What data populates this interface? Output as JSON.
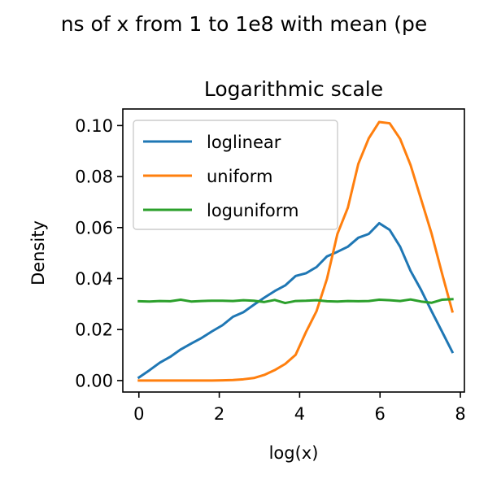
{
  "chart_data": {
    "type": "line",
    "suptitle": "ns of x from 1 to 1e8 with mean (pe",
    "title": "Logarithmic scale",
    "xlabel": "log(x)",
    "ylabel": "Density",
    "xlim": [
      -0.4,
      8.1
    ],
    "ylim": [
      -0.0045,
      0.1065
    ],
    "xticks": [
      0,
      2,
      4,
      6,
      8
    ],
    "xtick_labels": [
      "0",
      "2",
      "4",
      "6",
      "8"
    ],
    "yticks": [
      0.0,
      0.02,
      0.04,
      0.06,
      0.08,
      0.1
    ],
    "ytick_labels": [
      "0.00",
      "0.02",
      "0.04",
      "0.06",
      "0.08",
      "0.10"
    ],
    "grid": false,
    "legend_position": "top-left",
    "series": [
      {
        "name": "loglinear",
        "color": "#1f77b4",
        "x": [
          0.0,
          0.26,
          0.52,
          0.78,
          1.04,
          1.3,
          1.56,
          1.82,
          2.08,
          2.34,
          2.6,
          2.86,
          3.12,
          3.38,
          3.64,
          3.9,
          4.16,
          4.42,
          4.68,
          4.94,
          5.2,
          5.46,
          5.72,
          5.98,
          6.24,
          6.5,
          6.76,
          7.02,
          7.28,
          7.54,
          7.8
        ],
        "y": [
          0.0012,
          0.004,
          0.007,
          0.0093,
          0.0122,
          0.0145,
          0.0167,
          0.0193,
          0.0217,
          0.025,
          0.0268,
          0.0297,
          0.0325,
          0.0351,
          0.0373,
          0.041,
          0.0421,
          0.0445,
          0.0487,
          0.0505,
          0.0525,
          0.056,
          0.0575,
          0.0617,
          0.0591,
          0.0525,
          0.043,
          0.0356,
          0.0273,
          0.0193,
          0.0112
        ]
      },
      {
        "name": "uniform",
        "color": "#ff7f0e",
        "x": [
          0.0,
          0.26,
          0.52,
          0.78,
          1.04,
          1.3,
          1.56,
          1.82,
          2.08,
          2.34,
          2.6,
          2.86,
          3.12,
          3.38,
          3.64,
          3.9,
          4.16,
          4.42,
          4.68,
          4.94,
          5.2,
          5.46,
          5.72,
          5.98,
          6.24,
          6.5,
          6.76,
          7.02,
          7.28,
          7.54,
          7.8
        ],
        "y": [
          0.0,
          0.0,
          0.0,
          0.0,
          0.0,
          0.0,
          0.0,
          0.0,
          0.0001,
          0.0002,
          0.0005,
          0.001,
          0.0022,
          0.0041,
          0.0065,
          0.0101,
          0.0191,
          0.0272,
          0.0399,
          0.0575,
          0.0678,
          0.085,
          0.095,
          0.1014,
          0.1009,
          0.0948,
          0.0845,
          0.0712,
          0.0578,
          0.0422,
          0.0271
        ]
      },
      {
        "name": "loguniform",
        "color": "#2ca02c",
        "x": [
          0.0,
          0.26,
          0.52,
          0.78,
          1.04,
          1.3,
          1.56,
          1.82,
          2.08,
          2.34,
          2.6,
          2.86,
          3.12,
          3.38,
          3.64,
          3.9,
          4.16,
          4.42,
          4.68,
          4.94,
          5.2,
          5.46,
          5.72,
          5.98,
          6.24,
          6.5,
          6.76,
          7.02,
          7.28,
          7.54,
          7.8
        ],
        "y": [
          0.0311,
          0.031,
          0.0312,
          0.0311,
          0.0317,
          0.031,
          0.0312,
          0.0313,
          0.0313,
          0.0312,
          0.0315,
          0.0313,
          0.0308,
          0.0316,
          0.0304,
          0.0312,
          0.0313,
          0.0315,
          0.0311,
          0.031,
          0.0312,
          0.0311,
          0.0312,
          0.0317,
          0.0315,
          0.0312,
          0.0318,
          0.031,
          0.0305,
          0.0317,
          0.0319
        ]
      }
    ]
  }
}
